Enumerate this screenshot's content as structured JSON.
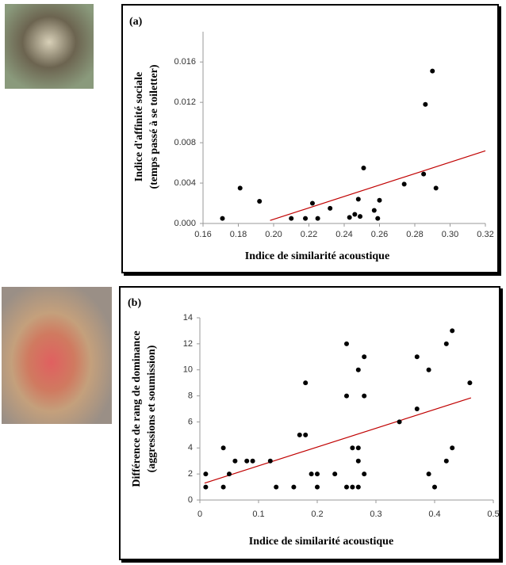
{
  "chart_data": [
    {
      "type": "scatter",
      "panel_label": "(a)",
      "x_label": "Indice de similarité acoustique",
      "y_label": [
        "Indice d'affinité sociale",
        "(temps passé à se toiletter)"
      ],
      "x": [
        0.171,
        0.181,
        0.192,
        0.21,
        0.218,
        0.222,
        0.225,
        0.232,
        0.243,
        0.246,
        0.248,
        0.249,
        0.251,
        0.257,
        0.259,
        0.26,
        0.274,
        0.285,
        0.286,
        0.29,
        0.292
      ],
      "series": [
        {
          "color": "#000000",
          "values": [
            0.0005,
            0.0035,
            0.0022,
            0.0005,
            0.0005,
            0.002,
            0.0005,
            0.0015,
            0.0006,
            0.0009,
            0.0024,
            0.0007,
            0.0055,
            0.0013,
            0.0005,
            0.0023,
            0.0039,
            0.0049,
            0.0118,
            0.0151,
            0.0035
          ]
        }
      ],
      "trendline": {
        "x": [
          0.198,
          0.32
        ],
        "y": [
          0.0003,
          0.0072
        ],
        "color": "#c00000"
      },
      "xlim": [
        0.16,
        0.32
      ],
      "ylim": [
        0,
        0.019
      ],
      "xticks": [
        0.16,
        0.18,
        {
          "value": 0.2,
          "label": "0.20"
        },
        0.22,
        0.24,
        0.26,
        0.28,
        {
          "value": 0.3,
          "label": "0.30"
        },
        0.32
      ],
      "yticks": [
        {
          "value": 0,
          "label": "0.000"
        },
        {
          "value": 0.004,
          "label": "0.004"
        },
        {
          "value": 0.008,
          "label": "0.008"
        },
        {
          "value": 0.012,
          "label": "0.012"
        },
        {
          "value": 0.016,
          "label": "0.016"
        }
      ],
      "grid": false
    },
    {
      "type": "scatter",
      "panel_label": "(b)",
      "x_label": "Indice de similarité acoustique",
      "y_label": [
        "Différence de rang de dominance",
        "(aggressions et soumission)"
      ],
      "x": [
        0.01,
        0.01,
        0.04,
        0.04,
        0.05,
        0.06,
        0.08,
        0.09,
        0.12,
        0.13,
        0.16,
        0.17,
        0.18,
        0.18,
        0.19,
        0.2,
        0.2,
        0.23,
        0.25,
        0.25,
        0.25,
        0.26,
        0.26,
        0.27,
        0.27,
        0.27,
        0.27,
        0.28,
        0.28,
        0.28,
        0.34,
        0.37,
        0.37,
        0.39,
        0.39,
        0.4,
        0.42,
        0.42,
        0.43,
        0.43,
        0.46
      ],
      "series": [
        {
          "color": "#000000",
          "values": [
            2,
            1,
            4,
            1,
            2,
            3,
            3,
            3,
            3,
            1,
            1,
            5,
            5,
            9,
            2,
            2,
            1,
            2,
            1,
            8,
            12,
            1,
            4,
            4,
            3,
            1,
            10,
            2,
            8,
            11,
            6,
            7,
            11,
            2,
            10,
            1,
            3,
            12,
            4,
            13,
            9
          ]
        }
      ],
      "trendline": {
        "x": [
          0.008,
          0.462
        ],
        "y": [
          1.3,
          7.85
        ],
        "color": "#c00000"
      },
      "xlim": [
        0,
        0.5
      ],
      "ylim": [
        0,
        14
      ],
      "xticks": [
        0,
        0.1,
        0.2,
        0.3,
        0.4,
        0.5
      ],
      "yticks": [
        0,
        2,
        4,
        6,
        8,
        10,
        12,
        14
      ],
      "grid": false
    }
  ]
}
